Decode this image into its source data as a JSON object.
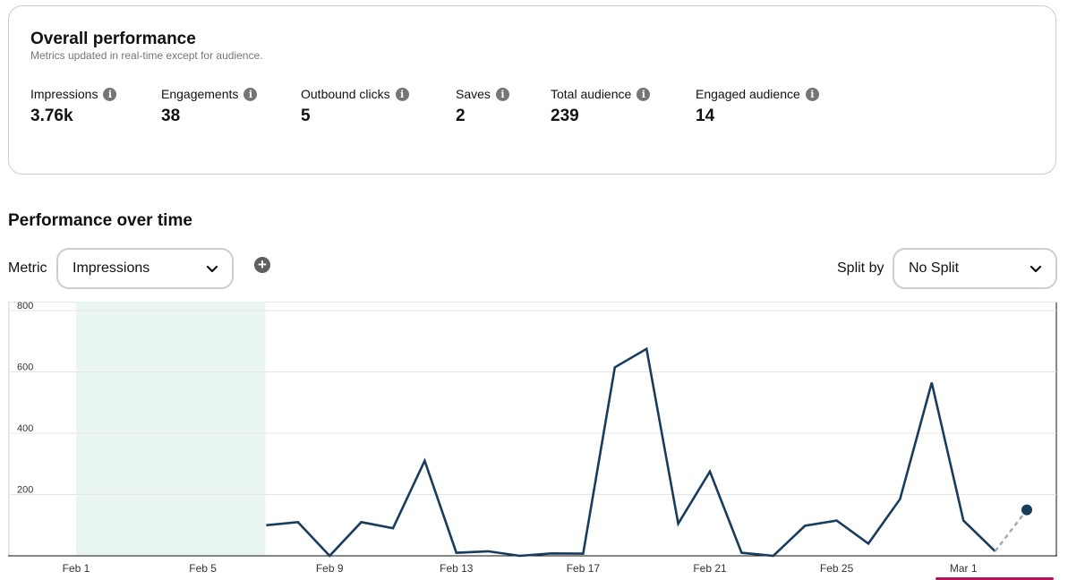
{
  "overall": {
    "title": "Overall performance",
    "subtitle": "Metrics updated in real-time except for audience.",
    "metrics": [
      {
        "label": "Impressions",
        "value": "3.76k"
      },
      {
        "label": "Engagements",
        "value": "38"
      },
      {
        "label": "Outbound clicks",
        "value": "5"
      },
      {
        "label": "Saves",
        "value": "2"
      },
      {
        "label": "Total audience",
        "value": "239"
      },
      {
        "label": "Engaged audience",
        "value": "14"
      }
    ],
    "info_icon": "info-icon"
  },
  "time": {
    "title": "Performance over time",
    "metric_label": "Metric",
    "metric_value": "Impressions",
    "split_label": "Split by",
    "split_value": "No Split",
    "add_icon": "plus-circle-icon"
  },
  "chart_data": {
    "type": "line",
    "x": [
      "Feb 1",
      "Feb 2",
      "Feb 3",
      "Feb 4",
      "Feb 5",
      "Feb 6",
      "Feb 7",
      "Feb 8",
      "Feb 9",
      "Feb 10",
      "Feb 11",
      "Feb 12",
      "Feb 13",
      "Feb 14",
      "Feb 15",
      "Feb 16",
      "Feb 17",
      "Feb 18",
      "Feb 19",
      "Feb 20",
      "Feb 21",
      "Feb 22",
      "Feb 23",
      "Feb 24",
      "Feb 25",
      "Feb 26",
      "Feb 27",
      "Feb 28",
      "Mar 1",
      "Mar 2",
      "Mar 3"
    ],
    "values": [
      null,
      null,
      null,
      null,
      null,
      null,
      100,
      110,
      0,
      110,
      90,
      310,
      10,
      15,
      0,
      8,
      7,
      615,
      675,
      105,
      275,
      10,
      0,
      98,
      115,
      40,
      185,
      565,
      115,
      15,
      150
    ],
    "dashed_from": "Mar 2",
    "x_tick_labels": [
      "Feb 1",
      "Feb 5",
      "Feb 9",
      "Feb 13",
      "Feb 17",
      "Feb 21",
      "Feb 25",
      "Mar 1"
    ],
    "y_ticks": [
      200,
      400,
      600,
      800
    ],
    "ylim": [
      0,
      800
    ],
    "highlight_range": [
      "Feb 1",
      "Feb 7"
    ],
    "grid": true,
    "colors": {
      "line": "#183c5c",
      "highlight": "#e8f5f0",
      "grid": "#e6e6e6"
    }
  }
}
